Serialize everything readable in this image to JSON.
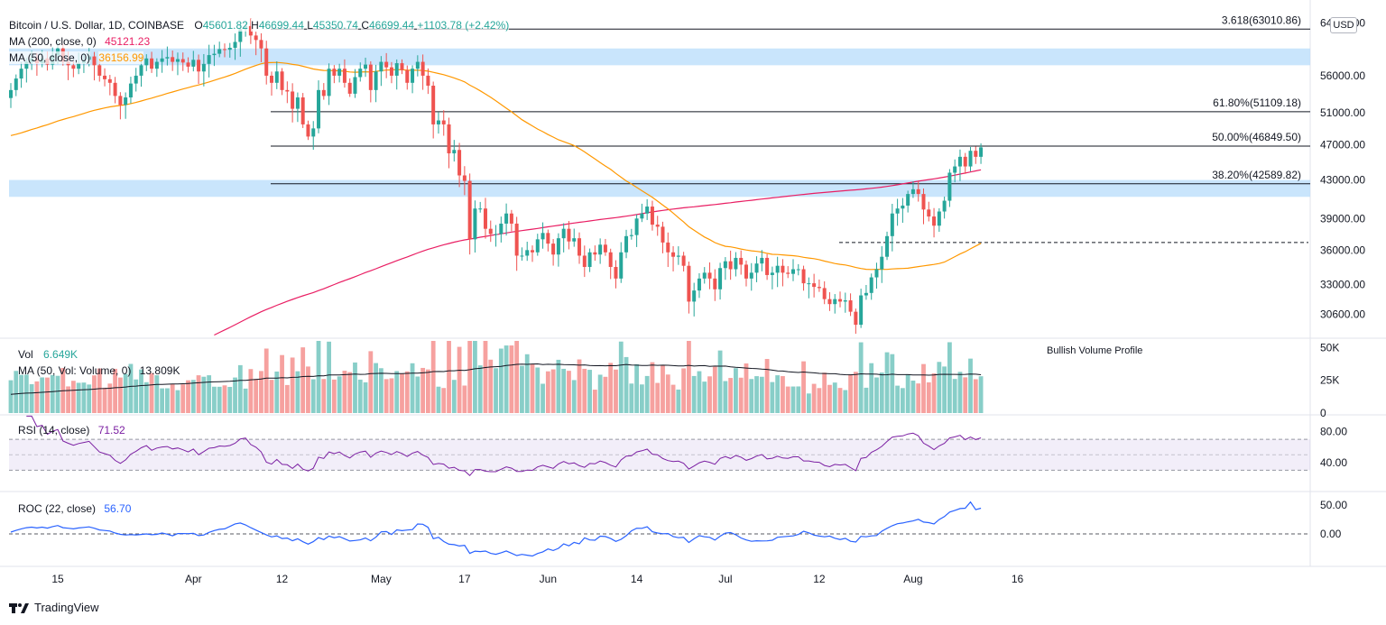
{
  "header": {
    "symbol": "Bitcoin / U.S. Dollar, 1D, COINBASE",
    "open_label": "O",
    "open": "45601.82",
    "high_label": "H",
    "high": "46699.44",
    "low_label": "L",
    "low": "45350.74",
    "close_label": "C",
    "close": "46699.44",
    "change": "+1103.78 (+2.42%)",
    "ma200_label": "MA (200, close, 0)",
    "ma200_value": "45121.23",
    "ma50_label": "MA (50, close, 0)",
    "ma50_value": "36156.99",
    "currency": "USD"
  },
  "volume_panel": {
    "label": "Vol",
    "value": "6.649K",
    "ma_label": "MA (50, Vol: Volume, 0)",
    "ma_value": "13.809K",
    "annotation": "Bullish Volume Profile"
  },
  "rsi_panel": {
    "label": "RSI (14, close)",
    "value": "71.52"
  },
  "roc_panel": {
    "label": "ROC (22, close)",
    "value": "56.70"
  },
  "footer": {
    "brand": "TradingView"
  },
  "colors": {
    "up": "#26a69a",
    "down": "#ef5350",
    "ma200": "#e91e63",
    "ma50": "#ff9800",
    "rsi": "#7b1fa2",
    "roc": "#2962ff",
    "zone": "#bbdefb"
  },
  "chart_data": {
    "type": "candlestick",
    "title": "Bitcoin / U.S. Dollar, 1D, COINBASE",
    "price_axis_ticks": [
      "30600.00",
      "33000.00",
      "36000.00",
      "39000.00",
      "43000.00",
      "47000.00",
      "51000.00",
      "56000.00",
      "64000.00"
    ],
    "price_axis_scale": "log",
    "time_axis_ticks": [
      "15",
      "Apr",
      "12",
      "May",
      "17",
      "Jun",
      "14",
      "Jul",
      "12",
      "Aug",
      "16"
    ],
    "fib_levels": [
      {
        "label": "3.618(63010.86)",
        "value": 63010.86
      },
      {
        "label": "61.80%(51109.18)",
        "value": 51109.18
      },
      {
        "label": "50.00%(46849.50)",
        "value": 46849.5
      },
      {
        "label": "38.20%(42589.82)",
        "value": 42589.82
      }
    ],
    "resistance_zones": [
      [
        57500,
        60000
      ],
      [
        41200,
        43000
      ]
    ],
    "dashed_level": 36700,
    "volume_axis_ticks": [
      "50K",
      "25K",
      "0"
    ],
    "rsi_axis_ticks": [
      "80.00",
      "40.00"
    ],
    "roc_axis_ticks": [
      "50.00",
      "0.00"
    ],
    "closes": [
      54000,
      55600,
      57000,
      58000,
      58500,
      57800,
      58500,
      57600,
      59000,
      60000,
      58000,
      57500,
      57000,
      57800,
      58300,
      58800,
      57500,
      56000,
      55500,
      55000,
      53200,
      52000,
      53000,
      54900,
      56000,
      57500,
      58500,
      57000,
      58000,
      58500,
      58700,
      58000,
      58400,
      57900,
      57300,
      58300,
      56600,
      57700,
      59000,
      59200,
      59900,
      59800,
      60100,
      61000,
      63000,
      63500,
      62000,
      61300,
      60000,
      56000,
      55000,
      56600,
      54000,
      53800,
      51500,
      53000,
      49500,
      48000,
      49000,
      54000,
      53200,
      57000,
      56000,
      57000,
      55000,
      53500,
      55800,
      57000,
      57600,
      54000,
      56600,
      58000,
      57200,
      56000,
      57800,
      56800,
      55000,
      57000,
      58000,
      56000,
      54600,
      49500,
      50000,
      49500,
      46000,
      46400,
      43500,
      42900,
      37000,
      40000,
      40000,
      38000,
      37500,
      37500,
      38500,
      39500,
      38500,
      35500,
      35500,
      36000,
      35800,
      37000,
      37600,
      36600,
      35600,
      37100,
      38000,
      36800,
      37100,
      35500,
      34500,
      35800,
      35600,
      36500,
      35800,
      34500,
      33500,
      35800,
      37300,
      37400,
      39000,
      39500,
      40200,
      38400,
      38200,
      36700,
      35800,
      35400,
      35500,
      34600,
      31600,
      32500,
      33500,
      34000,
      33500,
      32600,
      34400,
      35000,
      34300,
      35300,
      34700,
      33500,
      34000,
      34800,
      35300,
      33800,
      34000,
      34600,
      34000,
      33900,
      34300,
      34300,
      33100,
      33100,
      32800,
      32700,
      31800,
      31400,
      31800,
      31600,
      31700,
      30800,
      29800,
      32100,
      32300,
      33600,
      34300,
      35400,
      37300,
      39500,
      40000,
      40300,
      41500,
      42000,
      41500,
      39900,
      39200,
      38300,
      39700,
      40800,
      43800,
      44500,
      45600,
      44500,
      46300,
      45600,
      46700
    ],
    "volume_ma_note": "Volume bars colored by candle direction; MA(50) volume line overlaid"
  }
}
